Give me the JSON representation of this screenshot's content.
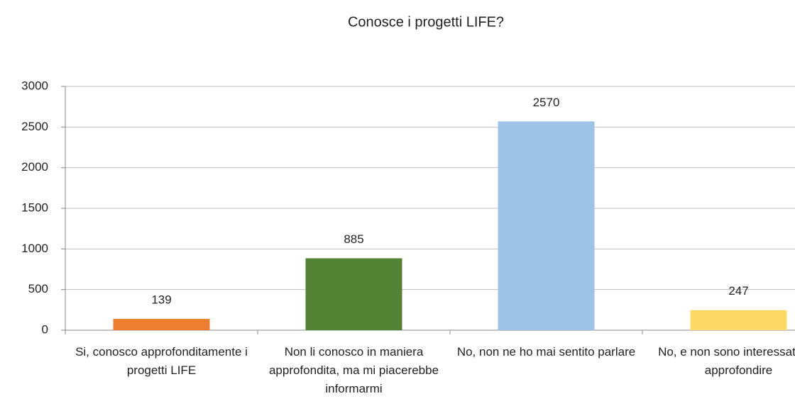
{
  "chart_data": {
    "type": "bar",
    "title": "Conosce i progetti LIFE?",
    "categories": [
      "Si, conosco approfonditamente i progetti LIFE",
      "Non li conosco in maniera approfondita, ma mi piacerebbe informarmi",
      "No, non ne ho mai sentito parlare",
      "No, e non sono interessato ad approfondire"
    ],
    "values": [
      139,
      885,
      2570,
      247
    ],
    "colors": [
      "#ed7d31",
      "#548235",
      "#9dc3e6",
      "#ffd966"
    ],
    "ylim": [
      0,
      3000
    ],
    "yticks": [
      0,
      500,
      1000,
      1500,
      2000,
      2500,
      3000
    ],
    "grid": true
  }
}
